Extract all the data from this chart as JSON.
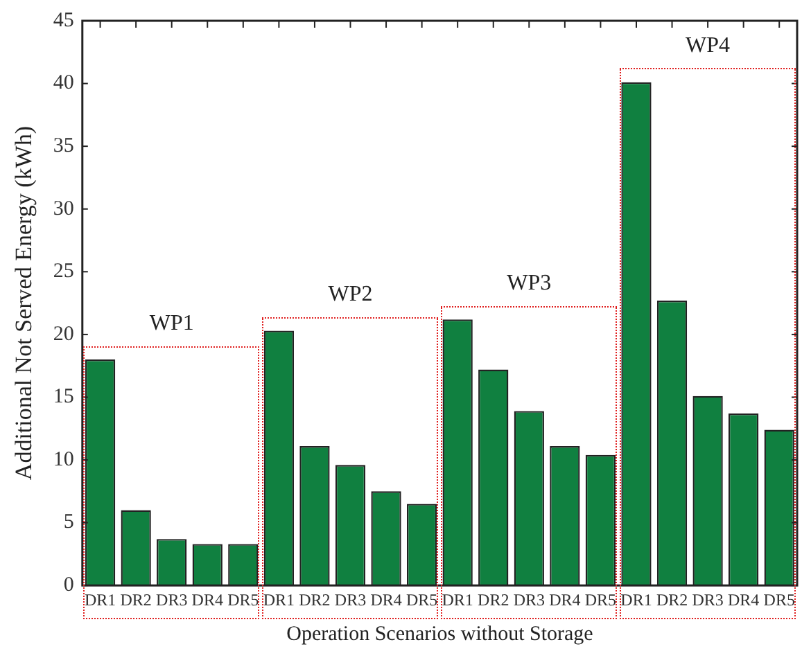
{
  "chart_data": {
    "type": "bar",
    "xlabel": "Operation Scenarios without Storage",
    "ylabel": "Additional Not Served Energy (kWh)",
    "categories": [
      "DR1",
      "DR2",
      "DR3",
      "DR4",
      "DR5",
      "DR1",
      "DR2",
      "DR3",
      "DR4",
      "DR5",
      "DR1",
      "DR2",
      "DR3",
      "DR4",
      "DR5",
      "DR1",
      "DR2",
      "DR3",
      "DR4",
      "DR5"
    ],
    "values": [
      18.0,
      6.0,
      3.7,
      3.3,
      3.3,
      20.3,
      11.1,
      9.6,
      7.5,
      6.5,
      21.2,
      17.2,
      13.9,
      11.1,
      10.4,
      40.1,
      22.7,
      15.1,
      13.7,
      12.4
    ],
    "color": "#108040",
    "ylim": [
      0,
      45
    ],
    "yticks": [
      0,
      5,
      10,
      15,
      20,
      25,
      30,
      35,
      40,
      45
    ],
    "annotations": [
      "WP1",
      "WP2",
      "WP3",
      "WP4"
    ],
    "grid": false,
    "legend": false
  }
}
